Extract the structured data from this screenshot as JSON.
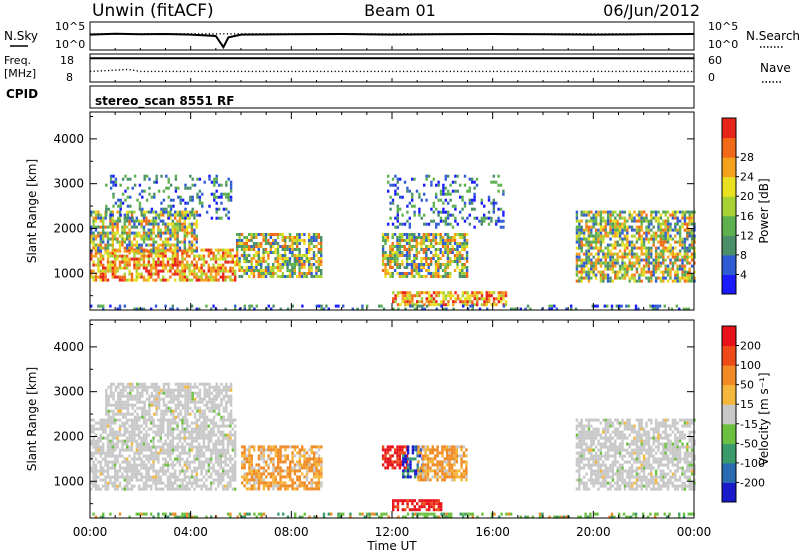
{
  "header": {
    "site": "Unwin (fitACF)",
    "beam": "Beam 01",
    "date": "06/Jun/2012"
  },
  "chart_data": [
    {
      "type": "line",
      "panel": "noise",
      "left_label": "N.Sky",
      "right_label": "N.Search",
      "left_ticks": [
        "10^5",
        "10^0"
      ],
      "right_ticks": [
        "10^5",
        "10^0"
      ],
      "series": [
        {
          "name": "N.Sky",
          "style": "solid",
          "x": [
            0,
            1,
            2,
            3,
            4,
            5,
            5.3,
            5.5,
            6,
            8,
            10,
            12,
            14,
            16,
            18,
            20,
            22,
            24
          ],
          "y_frac": [
            0.45,
            0.42,
            0.44,
            0.43,
            0.45,
            0.5,
            0.9,
            0.55,
            0.45,
            0.44,
            0.43,
            0.45,
            0.44,
            0.43,
            0.44,
            0.45,
            0.44,
            0.43
          ]
        },
        {
          "name": "N.Search",
          "style": "dotted",
          "x": [
            0,
            24
          ],
          "y_frac": [
            0.42,
            0.42
          ]
        }
      ]
    },
    {
      "type": "line",
      "panel": "frequency",
      "left_label_line1": "Freq.",
      "left_label_line2": "[MHz]",
      "right_label": "Nave",
      "left_ticks": [
        "18",
        "8"
      ],
      "right_ticks": [
        "60",
        "0"
      ],
      "series": [
        {
          "name": "Freq.",
          "style": "solid",
          "x": [
            0,
            24
          ],
          "y_frac": [
            0.15,
            0.15
          ]
        },
        {
          "name": "Nave",
          "style": "dotted",
          "x": [
            0,
            1,
            1.5,
            2,
            24
          ],
          "y_frac": [
            0.62,
            0.58,
            0.55,
            0.62,
            0.62
          ]
        }
      ]
    },
    {
      "type": "text",
      "panel": "cpid",
      "left_label": "CPID",
      "mode": "stereo_scan 8551 RF"
    },
    {
      "type": "heatmap",
      "panel": "power",
      "xlabel": "",
      "ylabel": "Slant Range [km]",
      "xlim": [
        0,
        24
      ],
      "ylim": [
        180,
        4600
      ],
      "y_ticks": [
        1000,
        2000,
        3000,
        4000
      ],
      "colorbar": {
        "label": "Power [dB]",
        "ticks": [
          "4",
          "8",
          "12",
          "16",
          "20",
          "24",
          "28"
        ],
        "colors": [
          "#1a1aff",
          "#2f5bd3",
          "#4a8f6a",
          "#5cb04e",
          "#a7d234",
          "#e8e020",
          "#f4a21c",
          "#f06a18",
          "#e8241a"
        ]
      },
      "regions": [
        {
          "x0": 0.0,
          "x1": 5.8,
          "y0": 850,
          "y1": 1550,
          "level": "high"
        },
        {
          "x0": 0.0,
          "x1": 4.2,
          "y0": 1500,
          "y1": 2400,
          "level": "mid"
        },
        {
          "x0": 0.6,
          "x1": 5.6,
          "y0": 2200,
          "y1": 3200,
          "level": "low"
        },
        {
          "x0": 5.8,
          "x1": 9.2,
          "y0": 900,
          "y1": 1900,
          "level": "mid"
        },
        {
          "x0": 11.6,
          "x1": 15.0,
          "y0": 900,
          "y1": 1900,
          "level": "mid"
        },
        {
          "x0": 12.0,
          "x1": 16.5,
          "y0": 300,
          "y1": 600,
          "level": "high"
        },
        {
          "x0": 11.8,
          "x1": 16.4,
          "y0": 2000,
          "y1": 3200,
          "level": "low"
        },
        {
          "x0": 19.3,
          "x1": 24.0,
          "y0": 850,
          "y1": 2400,
          "level": "mid"
        },
        {
          "x0": 0.0,
          "x1": 24.0,
          "y0": 180,
          "y1": 300,
          "level": "low"
        }
      ]
    },
    {
      "type": "heatmap",
      "panel": "velocity",
      "xlabel": "Time UT",
      "ylabel": "Slant Range [km]",
      "xlim": [
        0,
        24
      ],
      "ylim": [
        180,
        4600
      ],
      "x_ticks": [
        "00:00",
        "04:00",
        "08:00",
        "12:00",
        "16:00",
        "20:00",
        "00:00"
      ],
      "y_ticks": [
        1000,
        2000,
        3000,
        4000
      ],
      "colorbar": {
        "label": "Velocity [m s⁻¹]",
        "ticks": [
          "200",
          "100",
          "50",
          "15",
          "-15",
          "-50",
          "-100",
          "-200"
        ],
        "colors": [
          "#1a1acc",
          "#2a6ab0",
          "#3a9a6a",
          "#6cc040",
          "#c8c8c8",
          "#f5b63c",
          "#f08a24",
          "#ee4a18",
          "#e8121a"
        ]
      },
      "regions": [
        {
          "x0": 0.0,
          "x1": 5.8,
          "y0": 850,
          "y1": 2400,
          "level": "gray"
        },
        {
          "x0": 0.6,
          "x1": 5.6,
          "y0": 2400,
          "y1": 3200,
          "level": "gray"
        },
        {
          "x0": 6.0,
          "x1": 9.2,
          "y0": 800,
          "y1": 1800,
          "level": "orange"
        },
        {
          "x0": 11.6,
          "x1": 12.6,
          "y0": 1300,
          "y1": 1800,
          "level": "red"
        },
        {
          "x0": 12.4,
          "x1": 13.2,
          "y0": 1100,
          "y1": 1800,
          "level": "blue"
        },
        {
          "x0": 13.0,
          "x1": 15.0,
          "y0": 1000,
          "y1": 1800,
          "level": "orange"
        },
        {
          "x0": 12.0,
          "x1": 14.0,
          "y0": 350,
          "y1": 600,
          "level": "red"
        },
        {
          "x0": 19.3,
          "x1": 24.0,
          "y0": 850,
          "y1": 2400,
          "level": "gray"
        },
        {
          "x0": 0.0,
          "x1": 24.0,
          "y0": 180,
          "y1": 300,
          "level": "green"
        }
      ]
    }
  ]
}
